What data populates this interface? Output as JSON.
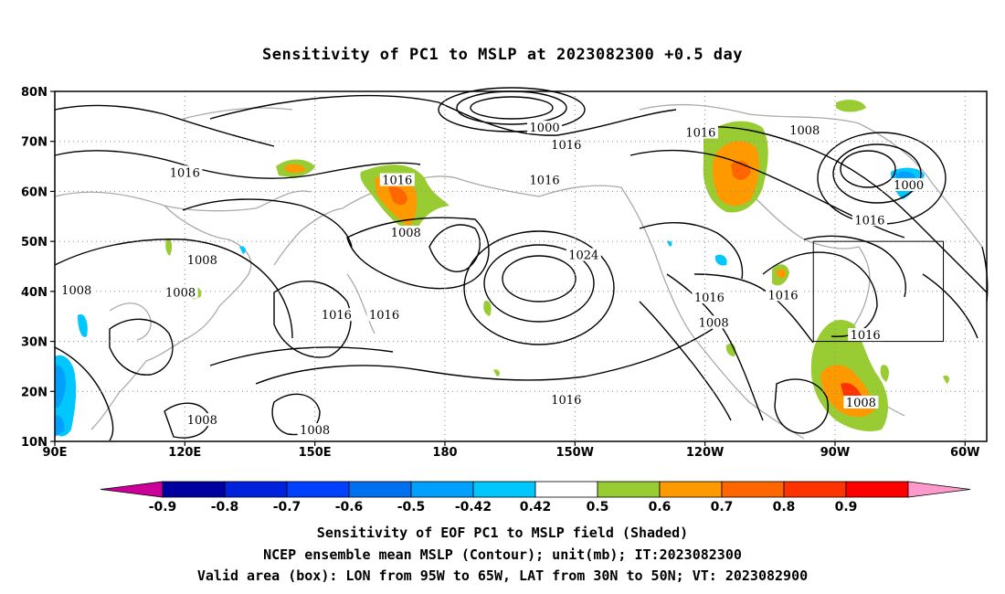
{
  "title": "Sensitivity of PC1 to MSLP at 2023082300 +0.5 day",
  "map": {
    "lon_range": [
      90,
      305
    ],
    "lat_range": [
      10,
      80
    ],
    "lat_ticks": [
      {
        "value": 80,
        "label": "80N"
      },
      {
        "value": 70,
        "label": "70N"
      },
      {
        "value": 60,
        "label": "60N"
      },
      {
        "value": 50,
        "label": "50N"
      },
      {
        "value": 40,
        "label": "40N"
      },
      {
        "value": 30,
        "label": "30N"
      },
      {
        "value": 20,
        "label": "20N"
      },
      {
        "value": 10,
        "label": "10N"
      }
    ],
    "lon_ticks": [
      {
        "value": 90,
        "label": "90E"
      },
      {
        "value": 120,
        "label": "120E"
      },
      {
        "value": 150,
        "label": "150E"
      },
      {
        "value": 180,
        "label": "180"
      },
      {
        "value": 210,
        "label": "150W"
      },
      {
        "value": 240,
        "label": "120W"
      },
      {
        "value": 270,
        "label": "90W"
      },
      {
        "value": 300,
        "label": "60W"
      }
    ],
    "grid": "dotted",
    "valid_box": {
      "lon": [
        265,
        295
      ],
      "lat": [
        30,
        50
      ]
    },
    "contour_labels": [
      {
        "text": "1000",
        "lon": 203,
        "lat": 72.5
      },
      {
        "text": "1016",
        "lon": 208,
        "lat": 69
      },
      {
        "text": "1016",
        "lon": 120,
        "lat": 63.5
      },
      {
        "text": "1016",
        "lon": 169,
        "lat": 62
      },
      {
        "text": "1016",
        "lon": 203,
        "lat": 62
      },
      {
        "text": "1016",
        "lon": 239,
        "lat": 71.5
      },
      {
        "text": "1008",
        "lon": 263,
        "lat": 72
      },
      {
        "text": "1000",
        "lon": 287,
        "lat": 61
      },
      {
        "text": "1016",
        "lon": 278,
        "lat": 54
      },
      {
        "text": "1008",
        "lon": 171,
        "lat": 51.5
      },
      {
        "text": "1024",
        "lon": 212,
        "lat": 47
      },
      {
        "text": "1008",
        "lon": 124,
        "lat": 46
      },
      {
        "text": "1008",
        "lon": 95,
        "lat": 40
      },
      {
        "text": "1008",
        "lon": 119,
        "lat": 39.5
      },
      {
        "text": "1016",
        "lon": 155,
        "lat": 35
      },
      {
        "text": "1016",
        "lon": 166,
        "lat": 35
      },
      {
        "text": "1016",
        "lon": 241,
        "lat": 38.5
      },
      {
        "text": "1016",
        "lon": 258,
        "lat": 39
      },
      {
        "text": "1008",
        "lon": 242,
        "lat": 33.5
      },
      {
        "text": "1016",
        "lon": 277,
        "lat": 31
      },
      {
        "text": "1016",
        "lon": 208,
        "lat": 18
      },
      {
        "text": "1008",
        "lon": 124,
        "lat": 14
      },
      {
        "text": "1008",
        "lon": 150,
        "lat": 12
      },
      {
        "text": "1008",
        "lon": 276,
        "lat": 17.5
      }
    ]
  },
  "colorbar": {
    "labels": [
      "-0.9",
      "-0.8",
      "-0.7",
      "-0.6",
      "-0.5",
      "-0.42",
      "0.42",
      "0.5",
      "0.6",
      "0.7",
      "0.8",
      "0.9"
    ],
    "colors": [
      "#0000a0",
      "#0022dd",
      "#0040ff",
      "#0070f0",
      "#00a0ff",
      "#00c8ff",
      "#ffffff",
      "#99cc33",
      "#ff9900",
      "#ff6600",
      "#ff3300",
      "#ff0000"
    ],
    "low_color": "#cc0099",
    "high_color": "#ff99cc"
  },
  "captions": {
    "line1": "Sensitivity of EOF PC1 to MSLP field (Shaded)",
    "line2": "NCEP ensemble mean MSLP (Contour); unit(mb); IT:2023082300",
    "line3": "Valid area (box): LON from 95W to 65W, LAT from 30N to 50N; VT: 2023082900"
  }
}
